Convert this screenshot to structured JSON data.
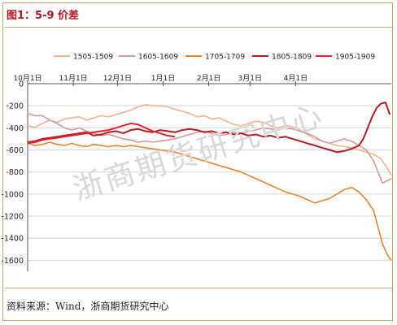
{
  "figure_title": "图1：5-9 价差",
  "source_label": "资料来源：Wind，浙商期货研究中心",
  "watermark": "浙商期货研究中心",
  "chart_data": {
    "type": "line",
    "title": "",
    "xlabel": "",
    "ylabel": "",
    "x_ticks": [
      "10月1日",
      "11月1日",
      "12月1日",
      "1月1日",
      "2月1日",
      "3月1日",
      "4月1日"
    ],
    "ylim": [
      -1700,
      0
    ],
    "y_ticks": [
      0,
      -200,
      -400,
      -600,
      -800,
      -1000,
      -1200,
      -1400,
      -1600
    ],
    "x_axis_at": 0,
    "grid": "horizontal",
    "legend": "top",
    "series": [
      {
        "name": "1505-1509",
        "color": "#f6b48a",
        "values": [
          [
            0,
            -380
          ],
          [
            5,
            -395
          ],
          [
            10,
            -360
          ],
          [
            15,
            -330
          ],
          [
            20,
            -350
          ],
          [
            25,
            -320
          ],
          [
            30,
            -310
          ],
          [
            35,
            -300
          ],
          [
            40,
            -330
          ],
          [
            45,
            -310
          ],
          [
            50,
            -290
          ],
          [
            55,
            -300
          ],
          [
            60,
            -280
          ],
          [
            65,
            -260
          ],
          [
            70,
            -240
          ],
          [
            75,
            -210
          ],
          [
            80,
            -190
          ],
          [
            85,
            -200
          ],
          [
            90,
            -200
          ],
          [
            95,
            -210
          ],
          [
            100,
            -230
          ],
          [
            105,
            -250
          ],
          [
            110,
            -270
          ],
          [
            115,
            -300
          ],
          [
            120,
            -290
          ],
          [
            125,
            -320
          ],
          [
            130,
            -310
          ],
          [
            135,
            -340
          ],
          [
            140,
            -370
          ],
          [
            145,
            -380
          ],
          [
            150,
            -360
          ],
          [
            155,
            -340
          ],
          [
            160,
            -350
          ],
          [
            165,
            -380
          ],
          [
            170,
            -400
          ],
          [
            175,
            -380
          ],
          [
            180,
            -390
          ],
          [
            185,
            -420
          ],
          [
            190,
            -460
          ],
          [
            195,
            -500
          ],
          [
            200,
            -520
          ],
          [
            205,
            -540
          ],
          [
            210,
            -560
          ],
          [
            215,
            -570
          ],
          [
            220,
            -580
          ],
          [
            225,
            -600
          ],
          [
            230,
            -620
          ],
          [
            235,
            -640
          ],
          [
            240,
            -680
          ],
          [
            244,
            -760
          ],
          [
            247,
            -830
          ]
        ]
      },
      {
        "name": "1605-1609",
        "color": "#d9999b",
        "values": [
          [
            0,
            -270
          ],
          [
            5,
            -290
          ],
          [
            10,
            -290
          ],
          [
            15,
            -330
          ],
          [
            20,
            -360
          ],
          [
            25,
            -400
          ],
          [
            30,
            -420
          ],
          [
            35,
            -400
          ],
          [
            40,
            -430
          ],
          [
            45,
            -450
          ],
          [
            50,
            -470
          ],
          [
            55,
            -460
          ],
          [
            60,
            -480
          ],
          [
            65,
            -500
          ],
          [
            70,
            -510
          ],
          [
            75,
            -530
          ],
          [
            80,
            -520
          ],
          [
            85,
            -530
          ],
          [
            90,
            -520
          ],
          [
            95,
            -510
          ],
          [
            100,
            -500
          ],
          [
            105,
            -480
          ],
          [
            110,
            -460
          ],
          [
            115,
            -440
          ],
          [
            120,
            -430
          ],
          [
            125,
            -450
          ],
          [
            130,
            -470
          ],
          [
            135,
            -460
          ],
          [
            140,
            -440
          ],
          [
            145,
            -450
          ],
          [
            150,
            -430
          ],
          [
            155,
            -420
          ],
          [
            160,
            -400
          ],
          [
            165,
            -410
          ],
          [
            170,
            -420
          ],
          [
            175,
            -400
          ],
          [
            180,
            -410
          ],
          [
            185,
            -430
          ],
          [
            190,
            -450
          ],
          [
            195,
            -480
          ],
          [
            200,
            -520
          ],
          [
            205,
            -540
          ],
          [
            210,
            -520
          ],
          [
            215,
            -500
          ],
          [
            220,
            -520
          ],
          [
            225,
            -560
          ],
          [
            230,
            -600
          ],
          [
            235,
            -700
          ],
          [
            238,
            -800
          ],
          [
            241,
            -900
          ],
          [
            244,
            -880
          ],
          [
            247,
            -860
          ]
        ]
      },
      {
        "name": "1705-1709",
        "color": "#e7852f",
        "values": [
          [
            0,
            -540
          ],
          [
            5,
            -560
          ],
          [
            10,
            -550
          ],
          [
            15,
            -530
          ],
          [
            20,
            -550
          ],
          [
            25,
            -560
          ],
          [
            30,
            -540
          ],
          [
            35,
            -560
          ],
          [
            40,
            -570
          ],
          [
            45,
            -550
          ],
          [
            50,
            -560
          ],
          [
            55,
            -570
          ],
          [
            60,
            -560
          ],
          [
            65,
            -570
          ],
          [
            70,
            -560
          ],
          [
            75,
            -570
          ],
          [
            80,
            -580
          ],
          [
            85,
            -590
          ],
          [
            90,
            -600
          ],
          [
            95,
            -610
          ],
          [
            100,
            -620
          ],
          [
            105,
            -640
          ],
          [
            110,
            -660
          ],
          [
            115,
            -680
          ],
          [
            120,
            -700
          ],
          [
            125,
            -720
          ],
          [
            130,
            -740
          ],
          [
            135,
            -760
          ],
          [
            140,
            -780
          ],
          [
            145,
            -800
          ],
          [
            150,
            -830
          ],
          [
            155,
            -860
          ],
          [
            160,
            -890
          ],
          [
            165,
            -920
          ],
          [
            170,
            -950
          ],
          [
            175,
            -980
          ],
          [
            180,
            -1000
          ],
          [
            185,
            -1020
          ],
          [
            190,
            -1050
          ],
          [
            195,
            -1080
          ],
          [
            200,
            -1060
          ],
          [
            205,
            -1040
          ],
          [
            210,
            -1000
          ],
          [
            215,
            -960
          ],
          [
            220,
            -940
          ],
          [
            225,
            -980
          ],
          [
            230,
            -1050
          ],
          [
            235,
            -1150
          ],
          [
            238,
            -1300
          ],
          [
            241,
            -1450
          ],
          [
            244,
            -1540
          ],
          [
            247,
            -1600
          ]
        ]
      },
      {
        "name": "1805-1809",
        "color": "#b01e24",
        "values": [
          [
            0,
            -530
          ],
          [
            5,
            -520
          ],
          [
            10,
            -500
          ],
          [
            15,
            -490
          ],
          [
            20,
            -480
          ],
          [
            25,
            -470
          ],
          [
            30,
            -460
          ],
          [
            35,
            -450
          ],
          [
            40,
            -440
          ],
          [
            45,
            -470
          ],
          [
            50,
            -460
          ],
          [
            55,
            -440
          ],
          [
            60,
            -430
          ],
          [
            65,
            -450
          ],
          [
            70,
            -420
          ],
          [
            75,
            -410
          ],
          [
            80,
            -430
          ],
          [
            85,
            -440
          ],
          [
            90,
            -420
          ],
          [
            95,
            -430
          ],
          [
            100,
            -440
          ],
          [
            105,
            -420
          ],
          [
            110,
            -410
          ],
          [
            115,
            -420
          ],
          [
            120,
            -440
          ],
          [
            125,
            -430
          ],
          [
            130,
            -450
          ],
          [
            135,
            -440
          ],
          [
            140,
            -460
          ],
          [
            145,
            -450
          ],
          [
            150,
            -470
          ],
          [
            155,
            -460
          ],
          [
            160,
            -480
          ],
          [
            165,
            -470
          ],
          [
            170,
            -490
          ],
          [
            175,
            -480
          ],
          [
            180,
            -500
          ],
          [
            185,
            -520
          ],
          [
            190,
            -540
          ],
          [
            195,
            -560
          ],
          [
            200,
            -580
          ],
          [
            205,
            -600
          ],
          [
            210,
            -620
          ],
          [
            215,
            -610
          ],
          [
            220,
            -590
          ],
          [
            225,
            -560
          ],
          [
            228,
            -500
          ],
          [
            231,
            -400
          ],
          [
            234,
            -300
          ],
          [
            237,
            -220
          ],
          [
            240,
            -180
          ],
          [
            243,
            -170
          ],
          [
            246,
            -280
          ]
        ]
      },
      {
        "name": "1905-1909",
        "color": "#e8202a",
        "values": [
          [
            0,
            -540
          ],
          [
            5,
            -530
          ],
          [
            10,
            -510
          ],
          [
            15,
            -500
          ],
          [
            20,
            -490
          ],
          [
            25,
            -480
          ],
          [
            30,
            -470
          ],
          [
            35,
            -460
          ],
          [
            40,
            -450
          ],
          [
            45,
            -440
          ],
          [
            50,
            -430
          ],
          [
            55,
            -420
          ],
          [
            60,
            -400
          ],
          [
            65,
            -380
          ],
          [
            70,
            -360
          ],
          [
            75,
            -370
          ],
          [
            80,
            -400
          ],
          [
            85,
            -430
          ],
          [
            90,
            -450
          ],
          [
            95,
            -470
          ],
          [
            100,
            -480
          ]
        ]
      }
    ]
  }
}
